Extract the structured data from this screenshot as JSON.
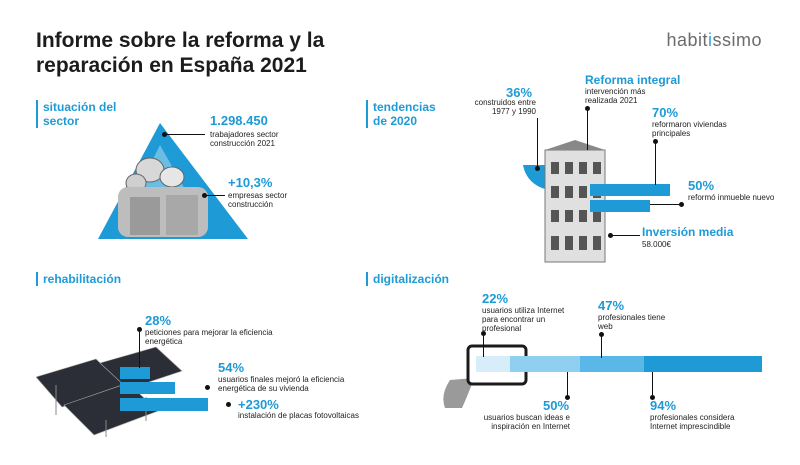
{
  "header": {
    "title": "Informe sobre la reforma y la reparación en España 2021",
    "logo": {
      "pre": "habit",
      "accent": "i",
      "post": "ssimo"
    }
  },
  "situacion": {
    "title": "situación del sector",
    "stat1": {
      "value": "1.298.450",
      "label": "trabajadores sector construcción 2021"
    },
    "stat2": {
      "value": "+10,3%",
      "label": "empresas sector construcción"
    }
  },
  "tendencias": {
    "title": "tendencias de 2020",
    "stat1": {
      "value": "36%",
      "label": "construidos entre 1977 y 1990"
    },
    "stat2": {
      "value": "Reforma integral",
      "label": "intervención más realizada 2021"
    },
    "stat3": {
      "value": "70%",
      "label": "reformaron viviendas principales"
    },
    "stat4": {
      "value": "50%",
      "label": "reformó inmueble nuevo"
    },
    "stat5": {
      "value": "Inversión media",
      "label": "58.000€"
    }
  },
  "rehabilitacion": {
    "title": "rehabilitación",
    "stat1": {
      "value": "28%",
      "label": "peticiones para mejorar la eficiencia energética"
    },
    "stat2": {
      "value": "54%",
      "label": "usuarios finales mejoró la eficiencia energética de su vivienda"
    },
    "stat3": {
      "value": "+230%",
      "label": "instalación de placas fotovoltaicas"
    }
  },
  "digitalizacion": {
    "title": "digitalización",
    "stat1": {
      "value": "22%",
      "label": "usuarios utiliza Internet para encontrar un profesional"
    },
    "stat2": {
      "value": "47%",
      "label": "profesionales tiene web"
    },
    "stat3": {
      "value": "50%",
      "label": "usuarios buscan ideas e inspiración en Internet"
    },
    "stat4": {
      "value": "94%",
      "label": "profesionales considera Internet imprescindible"
    }
  },
  "colors": {
    "accent": "#1e9ad6",
    "light": "#8fd0f0",
    "text": "#222222"
  }
}
